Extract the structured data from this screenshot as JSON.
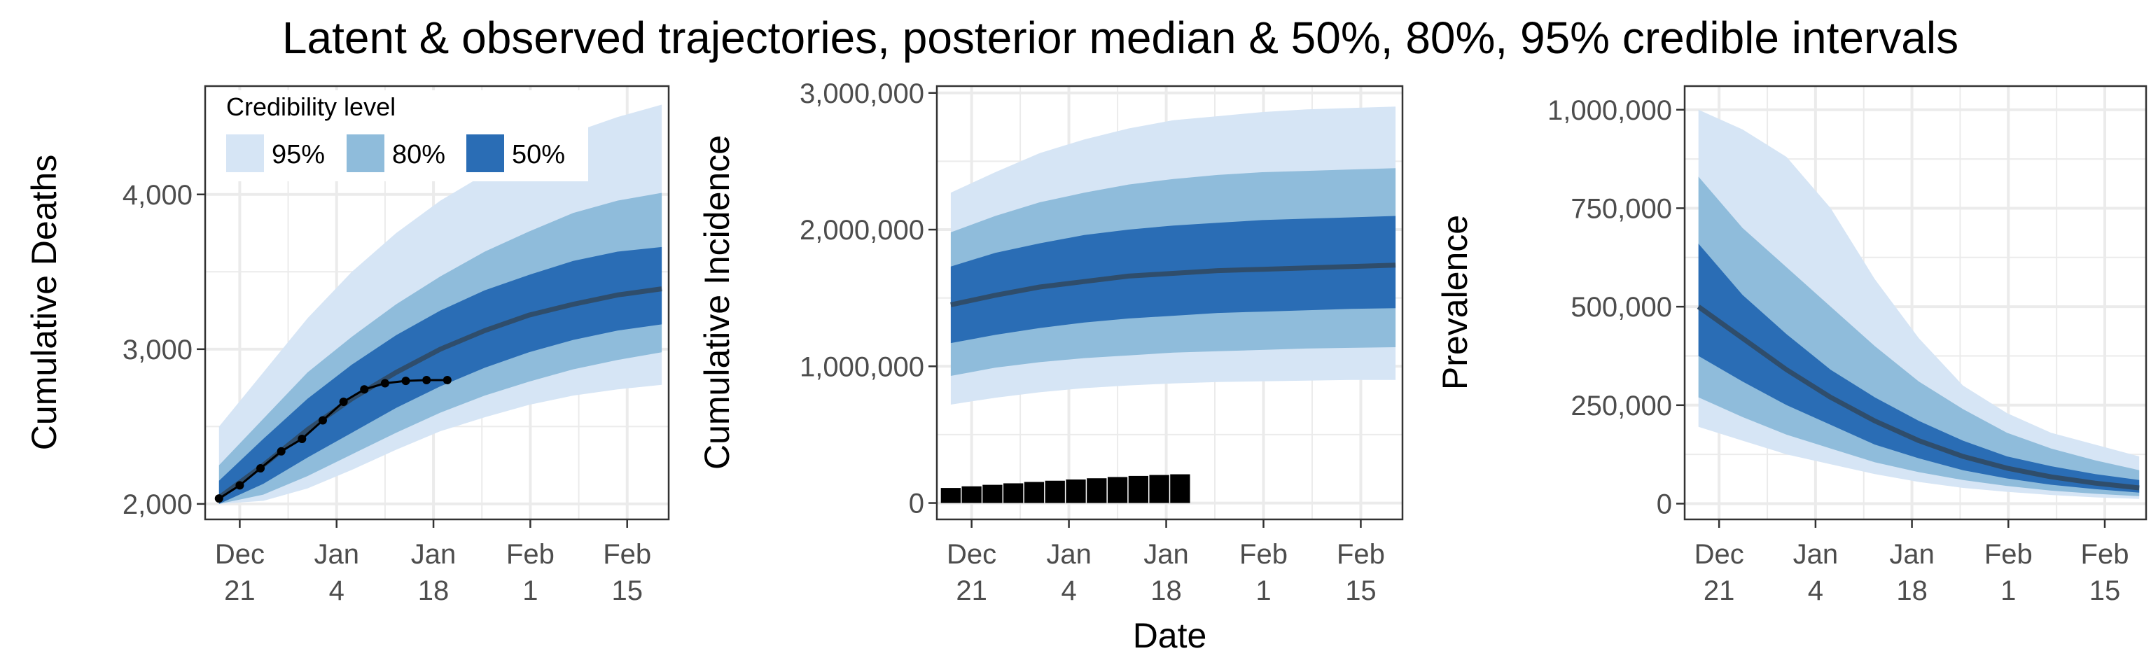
{
  "title": "Latent & observed trajectories, posterior median & 50%, 80%, 95% credible intervals",
  "colors": {
    "ci95": "#d6e5f5",
    "ci80": "#8fbcdb",
    "ci50": "#2a6db5",
    "median": "#2f4d6b",
    "observed": "#000000",
    "grid": "#ebebeb",
    "axis": "#333333",
    "tick_label": "#4d4d4d"
  },
  "legend": {
    "title": "Credibility level",
    "items": [
      {
        "label": "95%",
        "color": "#d6e5f5"
      },
      {
        "label": "80%",
        "color": "#8fbcdb"
      },
      {
        "label": "50%",
        "color": "#2a6db5"
      }
    ],
    "placement": "top-left inside first panel"
  },
  "chart_data": [
    {
      "type": "area",
      "title": "",
      "xlabel": "",
      "ylabel": "Cumulative Deaths",
      "x_start": "2020-12-18",
      "x_end": "2021-02-20",
      "xlim": [
        "2020-12-16",
        "2021-02-21"
      ],
      "xticks": [
        [
          "Dec",
          "21"
        ],
        [
          "Jan",
          "4"
        ],
        [
          "Jan",
          "18"
        ],
        [
          "Feb",
          "1"
        ],
        [
          "Feb",
          "15"
        ]
      ],
      "xtick_dates": [
        "2020-12-21",
        "2021-01-04",
        "2021-01-18",
        "2021-02-01",
        "2021-02-15"
      ],
      "ylim": [
        1900,
        4700
      ],
      "yticks": [
        2000,
        3000,
        4000
      ],
      "ytick_labels": [
        "2,000",
        "3,000",
        "4,000"
      ],
      "grid": true,
      "bands": {
        "ci95_upper": [
          2500,
          2850,
          3200,
          3500,
          3750,
          3960,
          4130,
          4280,
          4400,
          4500,
          4580
        ],
        "ci80_upper": [
          2250,
          2550,
          2850,
          3080,
          3290,
          3470,
          3630,
          3760,
          3880,
          3960,
          4010
        ],
        "ci50_upper": [
          2150,
          2420,
          2680,
          2900,
          3090,
          3250,
          3380,
          3480,
          3570,
          3630,
          3660
        ],
        "median": [
          2040,
          2250,
          2480,
          2680,
          2850,
          3000,
          3120,
          3220,
          3290,
          3350,
          3390
        ],
        "ci50_lower": [
          2000,
          2130,
          2300,
          2460,
          2620,
          2760,
          2880,
          2980,
          3060,
          3120,
          3160
        ],
        "ci80_lower": [
          2000,
          2060,
          2180,
          2320,
          2460,
          2590,
          2700,
          2790,
          2870,
          2930,
          2980
        ],
        "ci95_lower": [
          2000,
          2020,
          2100,
          2220,
          2350,
          2470,
          2560,
          2640,
          2700,
          2740,
          2770
        ]
      },
      "observed": {
        "x": [
          "2020-12-18",
          "2020-12-21",
          "2020-12-24",
          "2020-12-27",
          "2020-12-30",
          "2021-01-02",
          "2021-01-05",
          "2021-01-08",
          "2021-01-11",
          "2021-01-14",
          "2021-01-17",
          "2021-01-20"
        ],
        "y": [
          2035,
          2120,
          2230,
          2340,
          2420,
          2540,
          2660,
          2740,
          2780,
          2795,
          2800,
          2800
        ]
      }
    },
    {
      "type": "area",
      "title": "",
      "xlabel": "Date",
      "ylabel": "Cumulative Incidence",
      "x_start": "2020-12-18",
      "x_end": "2021-02-20",
      "xlim": [
        "2020-12-16",
        "2021-02-21"
      ],
      "xticks": [
        [
          "Dec",
          "21"
        ],
        [
          "Jan",
          "4"
        ],
        [
          "Jan",
          "18"
        ],
        [
          "Feb",
          "1"
        ],
        [
          "Feb",
          "15"
        ]
      ],
      "xtick_dates": [
        "2020-12-21",
        "2021-01-04",
        "2021-01-18",
        "2021-02-01",
        "2021-02-15"
      ],
      "ylim": [
        -120000,
        3050000
      ],
      "yticks": [
        0,
        1000000,
        2000000,
        3000000
      ],
      "ytick_labels": [
        "0",
        "1,000,000",
        "2,000,000",
        "3,000,000"
      ],
      "grid": true,
      "bands": {
        "ci95_upper": [
          2270000,
          2420000,
          2560000,
          2660000,
          2740000,
          2800000,
          2830000,
          2860000,
          2880000,
          2890000,
          2900000
        ],
        "ci80_upper": [
          1980000,
          2100000,
          2200000,
          2270000,
          2330000,
          2370000,
          2400000,
          2420000,
          2430000,
          2440000,
          2450000
        ],
        "ci50_upper": [
          1730000,
          1830000,
          1900000,
          1960000,
          2000000,
          2030000,
          2050000,
          2070000,
          2080000,
          2090000,
          2100000
        ],
        "median": [
          1450000,
          1520000,
          1580000,
          1620000,
          1660000,
          1680000,
          1700000,
          1710000,
          1720000,
          1730000,
          1740000
        ],
        "ci50_lower": [
          1170000,
          1230000,
          1280000,
          1320000,
          1350000,
          1370000,
          1390000,
          1400000,
          1410000,
          1420000,
          1425000
        ],
        "ci80_lower": [
          930000,
          990000,
          1030000,
          1060000,
          1080000,
          1100000,
          1110000,
          1120000,
          1130000,
          1135000,
          1140000
        ],
        "ci95_lower": [
          720000,
          770000,
          810000,
          840000,
          860000,
          875000,
          885000,
          890000,
          895000,
          900000,
          900000
        ]
      },
      "observed_bars": {
        "x": [
          "2020-12-18",
          "2020-12-21",
          "2020-12-24",
          "2020-12-27",
          "2020-12-30",
          "2021-01-02",
          "2021-01-05",
          "2021-01-08",
          "2021-01-11",
          "2021-01-14",
          "2021-01-17",
          "2021-01-20"
        ],
        "y": [
          110000,
          122000,
          133000,
          144000,
          154000,
          163000,
          172000,
          181000,
          190000,
          198000,
          205000,
          210000
        ]
      }
    },
    {
      "type": "area",
      "title": "",
      "xlabel": "",
      "ylabel": "Prevalence",
      "x_start": "2020-12-18",
      "x_end": "2021-02-20",
      "xlim": [
        "2020-12-16",
        "2021-02-21"
      ],
      "xticks": [
        [
          "Dec",
          "21"
        ],
        [
          "Jan",
          "4"
        ],
        [
          "Jan",
          "18"
        ],
        [
          "Feb",
          "1"
        ],
        [
          "Feb",
          "15"
        ]
      ],
      "xtick_dates": [
        "2020-12-21",
        "2021-01-04",
        "2021-01-18",
        "2021-02-01",
        "2021-02-15"
      ],
      "ylim": [
        -40000,
        1060000
      ],
      "yticks": [
        0,
        250000,
        500000,
        750000,
        1000000
      ],
      "ytick_labels": [
        "0",
        "250,000",
        "500,000",
        "750,000",
        "1,000,000"
      ],
      "grid": true,
      "bands": {
        "ci95_upper": [
          1000000,
          950000,
          880000,
          750000,
          570000,
          420000,
          300000,
          230000,
          180000,
          150000,
          120000
        ],
        "ci80_upper": [
          830000,
          700000,
          600000,
          500000,
          400000,
          310000,
          240000,
          180000,
          140000,
          110000,
          85000
        ],
        "ci50_upper": [
          660000,
          530000,
          430000,
          340000,
          270000,
          210000,
          160000,
          120000,
          95000,
          75000,
          60000
        ],
        "median": [
          500000,
          420000,
          340000,
          270000,
          210000,
          160000,
          120000,
          90000,
          68000,
          52000,
          40000
        ],
        "ci50_lower": [
          375000,
          310000,
          250000,
          200000,
          150000,
          115000,
          85000,
          64000,
          48000,
          37000,
          28000
        ],
        "ci80_lower": [
          270000,
          220000,
          175000,
          140000,
          105000,
          80000,
          60000,
          45000,
          33000,
          25000,
          19000
        ],
        "ci95_lower": [
          195000,
          160000,
          125000,
          100000,
          75000,
          55000,
          40000,
          30000,
          22000,
          16000,
          12000
        ]
      }
    }
  ]
}
